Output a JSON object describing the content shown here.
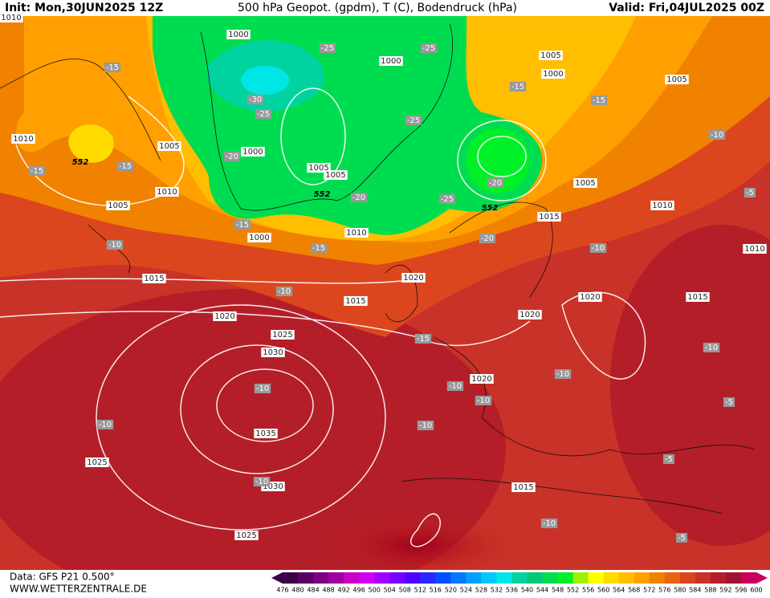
{
  "header": {
    "init": "Init: Mon,30JUN2025 12Z",
    "title": "500 hPa Geopot. (gpdm), T (C), Bodendruck (hPa)",
    "valid": "Valid: Fri,04JUL2025 00Z"
  },
  "footer": {
    "source": "Data: GFS P21 0.500°",
    "website": "WWW.WETTERZENTRALE.DE"
  },
  "colorbar": {
    "labels": [
      476,
      480,
      484,
      488,
      492,
      496,
      500,
      504,
      508,
      512,
      516,
      520,
      524,
      528,
      532,
      536,
      540,
      544,
      548,
      552,
      556,
      560,
      564,
      568,
      572,
      576,
      580,
      584,
      588,
      592,
      596,
      600
    ],
    "colors": [
      "#3c0046",
      "#5a0064",
      "#7d0082",
      "#a000a0",
      "#c800c8",
      "#d200f0",
      "#a000ff",
      "#7800ff",
      "#5000ff",
      "#2828ff",
      "#0050ff",
      "#0078ff",
      "#00a0ff",
      "#00c8ff",
      "#00e6e6",
      "#00d2a0",
      "#00c878",
      "#00dc50",
      "#00f028",
      "#a0f000",
      "#ffff00",
      "#ffdc00",
      "#ffbe00",
      "#ffa000",
      "#f08200",
      "#e66414",
      "#dc461e",
      "#c83228",
      "#b41e28",
      "#a01432",
      "#c8005a"
    ]
  },
  "map": {
    "isobar_labels": [
      1010,
      1000,
      1000,
      1005,
      1000,
      1005,
      1010,
      1005,
      1000,
      1005,
      1005,
      1010,
      1005,
      1005,
      1010,
      1015,
      1000,
      1010,
      1010,
      1015,
      1020,
      1015,
      1020,
      1015,
      1020,
      1020,
      1025,
      1030,
      1020,
      1035,
      1025,
      1030,
      1015,
      1025
    ],
    "temperature_labels": [
      -15,
      -25,
      -25,
      -30,
      -25,
      -15,
      -15,
      -25,
      -10,
      -15,
      -15,
      -20,
      -20,
      -25,
      -20,
      -5,
      -15,
      -20,
      -10,
      -15,
      -10,
      -10,
      -15,
      -10,
      -10,
      -10,
      -10,
      -10,
      -10,
      -10,
      -5,
      -5,
      -10,
      -10,
      -5
    ],
    "height_labels": [
      552,
      552,
      552
    ]
  }
}
